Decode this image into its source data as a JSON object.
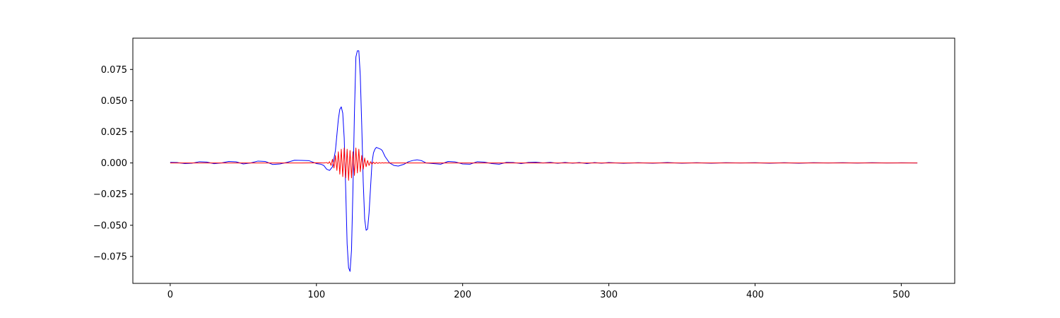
{
  "chart_data": {
    "type": "line",
    "title": "",
    "xlabel": "",
    "ylabel": "",
    "xlim": [
      -25.55,
      536.55
    ],
    "ylim": [
      -0.0966,
      0.1001
    ],
    "grid": false,
    "legend": "none",
    "x_ticks": [
      {
        "value": 0,
        "label": "0"
      },
      {
        "value": 100,
        "label": "100"
      },
      {
        "value": 200,
        "label": "200"
      },
      {
        "value": 300,
        "label": "300"
      },
      {
        "value": 400,
        "label": "400"
      },
      {
        "value": 500,
        "label": "500"
      }
    ],
    "y_ticks": [
      {
        "value": -0.075,
        "label": "−0.075"
      },
      {
        "value": -0.05,
        "label": "−0.050"
      },
      {
        "value": -0.025,
        "label": "−0.025"
      },
      {
        "value": 0.0,
        "label": "0.000"
      },
      {
        "value": 0.025,
        "label": "0.025"
      },
      {
        "value": 0.05,
        "label": "0.050"
      },
      {
        "value": 0.075,
        "label": "0.075"
      }
    ],
    "series": [
      {
        "color": "#0000ff",
        "x": [
          0,
          5,
          10,
          15,
          20,
          25,
          30,
          35,
          40,
          45,
          50,
          55,
          60,
          65,
          70,
          75,
          80,
          85,
          90,
          95,
          100,
          103,
          105,
          107,
          109,
          111,
          113,
          115,
          116,
          117,
          118,
          119,
          120,
          121,
          122,
          123,
          124,
          125,
          126,
          127,
          128,
          129,
          130,
          131,
          132,
          133,
          134,
          135,
          136,
          137,
          138,
          139,
          140,
          141,
          142,
          143,
          144,
          145,
          147,
          150,
          153,
          156,
          160,
          163,
          166,
          169,
          172,
          175,
          180,
          185,
          190,
          195,
          200,
          205,
          210,
          215,
          220,
          225,
          230,
          235,
          240,
          245,
          250,
          255,
          260,
          265,
          270,
          275,
          280,
          285,
          290,
          295,
          300,
          310,
          320,
          330,
          340,
          350,
          360,
          370,
          380,
          390,
          400,
          410,
          420,
          430,
          440,
          450,
          460,
          470,
          480,
          490,
          500,
          511
        ],
        "y": [
          0.0005,
          0.0003,
          -0.0005,
          -0.0002,
          0.001,
          0.0007,
          -0.0006,
          0.0,
          0.0012,
          0.0009,
          -0.0008,
          0.0,
          0.0015,
          0.0012,
          -0.0012,
          -0.0008,
          0.0005,
          0.0022,
          0.002,
          0.0018,
          -0.0005,
          -0.001,
          -0.002,
          -0.005,
          -0.006,
          -0.003,
          0.01,
          0.035,
          0.043,
          0.045,
          0.04,
          0.02,
          -0.02,
          -0.065,
          -0.084,
          -0.087,
          -0.07,
          -0.02,
          0.04,
          0.085,
          0.09,
          0.09,
          0.07,
          0.03,
          -0.015,
          -0.045,
          -0.054,
          -0.053,
          -0.04,
          -0.02,
          0.0,
          0.008,
          0.011,
          0.0125,
          0.012,
          0.0115,
          0.011,
          0.01,
          0.005,
          0.0,
          -0.002,
          -0.0025,
          -0.001,
          0.001,
          0.002,
          0.0025,
          0.0018,
          0.0,
          -0.0005,
          -0.001,
          0.0012,
          0.0008,
          -0.0008,
          -0.001,
          0.001,
          0.0006,
          -0.0005,
          -0.001,
          0.0005,
          0.0003,
          -0.0005,
          0.0004,
          0.0006,
          0.0,
          0.0005,
          -0.0003,
          0.0004,
          -0.0002,
          0.0003,
          -0.0005,
          0.0003,
          -0.0002,
          0.0003,
          -0.0003,
          0.0002,
          -0.0002,
          0.0003,
          -0.0002,
          0.0002,
          -0.0002,
          0.0002,
          0.0,
          0.0002,
          -0.0002,
          0.0002,
          -0.0002,
          0.0002,
          0.0,
          0.0002,
          -0.0001,
          0.0002,
          0.0,
          0.0001,
          0.0
        ]
      },
      {
        "color": "#ff0000",
        "x": [
          0,
          50,
          90,
          100,
          105,
          107,
          108,
          109,
          110,
          111,
          112,
          113,
          114,
          115,
          116,
          117,
          118,
          119,
          120,
          121,
          122,
          123,
          124,
          125,
          126,
          127,
          128,
          129,
          130,
          131,
          132,
          133,
          134,
          135,
          136,
          137,
          138,
          139,
          140,
          141,
          142,
          143,
          144,
          145,
          146,
          147,
          148,
          150,
          160,
          200,
          300,
          400,
          511
        ],
        "y": [
          0.0,
          0.0,
          0.0,
          0.0001,
          0.0,
          0.0003,
          -0.0004,
          0.001,
          -0.002,
          0.003,
          -0.004,
          0.006,
          -0.006,
          0.009,
          -0.009,
          0.011,
          -0.011,
          0.012,
          -0.012,
          0.011,
          -0.014,
          0.01,
          -0.012,
          0.009,
          -0.01,
          0.012,
          -0.008,
          0.011,
          -0.007,
          0.006,
          -0.005,
          0.004,
          -0.003,
          0.002,
          -0.002,
          0.001,
          -0.001,
          0.0007,
          -0.0006,
          0.0005,
          -0.0004,
          0.0003,
          -0.0002,
          0.0002,
          -0.0001,
          0.0001,
          0.0,
          0.0,
          0.0,
          0.0,
          0.0,
          0.0,
          0.0
        ]
      }
    ]
  }
}
